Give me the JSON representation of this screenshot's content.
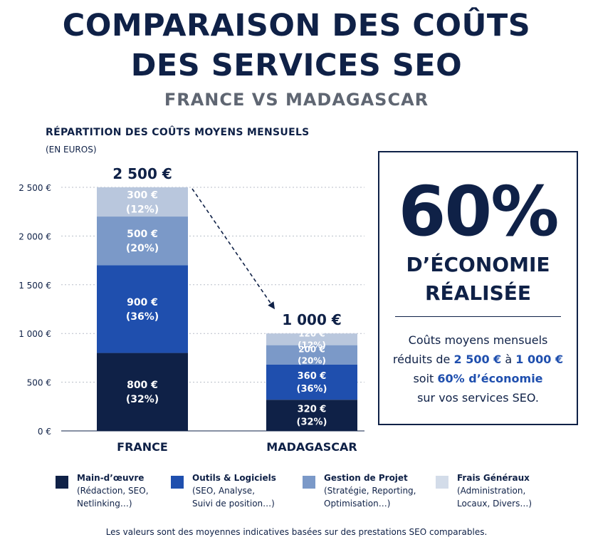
{
  "title": {
    "line1": "COMPARAISON DES COÛTS",
    "line2": "DES SERVICES SEO",
    "subtitle": "FRANCE VS MADAGASCAR"
  },
  "section_label": "RÉPARTITION DES COÛTS MOYENS MENSUELS",
  "unit_label": "(EN EUROS)",
  "callout": {
    "big": "60%",
    "line1": "D’ÉCONOMIE",
    "line2": "RÉALISÉE",
    "text_1": "Coûts moyens mensuels",
    "text_2a": "réduits de ",
    "text_2b": "2 500 €",
    "text_2c": " à ",
    "text_2d": "1 000 €",
    "text_3a": "soit ",
    "text_3b": "60% d’économie",
    "text_4": "sur vos services SEO."
  },
  "legend": [
    {
      "name": "Main-d’œuvre",
      "desc1": "(Rédaction, SEO,",
      "desc2": "Netlinking…)",
      "color": "#0f2147"
    },
    {
      "name": "Outils & Logiciels",
      "desc1": "(SEO, Analyse,",
      "desc2": "Suivi de position…)",
      "color": "#1f4fae"
    },
    {
      "name": "Gestion de Projet",
      "desc1": "(Stratégie, Reporting,",
      "desc2": "Optimisation…)",
      "color": "#7b99c8"
    },
    {
      "name": "Frais Généraux",
      "desc1": "(Administration,",
      "desc2": "Locaux, Divers…)",
      "color": "#d3dce9"
    }
  ],
  "footnote": "Les valeurs sont des moyennes indicatives basées sur des prestations SEO comparables.",
  "chart_data": {
    "type": "bar",
    "stacked": true,
    "categories": [
      "FRANCE",
      "MADAGASCAR"
    ],
    "totals": [
      2500,
      1000
    ],
    "total_labels": [
      "2 500 €",
      "1 000 €"
    ],
    "ylim": [
      0,
      2500
    ],
    "yticks": [
      0,
      500,
      1000,
      1500,
      2000,
      2500
    ],
    "ytick_labels": [
      "0 €",
      "500 €",
      "1 000 €",
      "1 500 €",
      "2 000 €",
      "2 500 €"
    ],
    "grid": true,
    "annotation": "dashed arrow from FRANCE total to MADAGASCAR total",
    "series": [
      {
        "name": "Main-d’œuvre",
        "color": "#0f2147",
        "text_color": "#ffffff",
        "values": [
          800,
          320
        ],
        "value_labels": [
          "800 €",
          "320 €"
        ],
        "pct_labels": [
          "(32%)",
          "(32%)"
        ]
      },
      {
        "name": "Outils & Logiciels",
        "color": "#1f4fae",
        "text_color": "#ffffff",
        "values": [
          900,
          360
        ],
        "value_labels": [
          "900 €",
          "360 €"
        ],
        "pct_labels": [
          "(36%)",
          "(36%)"
        ]
      },
      {
        "name": "Gestion de Projet",
        "color": "#7b99c8",
        "text_color": "#ffffff",
        "values": [
          500,
          200
        ],
        "value_labels": [
          "500 €",
          "200 €"
        ],
        "pct_labels": [
          "(20%)",
          "(20%)"
        ]
      },
      {
        "name": "Frais Généraux",
        "color": "#b9c7dd",
        "text_color": "#ffffff",
        "values": [
          300,
          120
        ],
        "value_labels": [
          "300 €",
          "120 €"
        ],
        "pct_labels": [
          "(12%)",
          "(12%)"
        ]
      }
    ]
  }
}
